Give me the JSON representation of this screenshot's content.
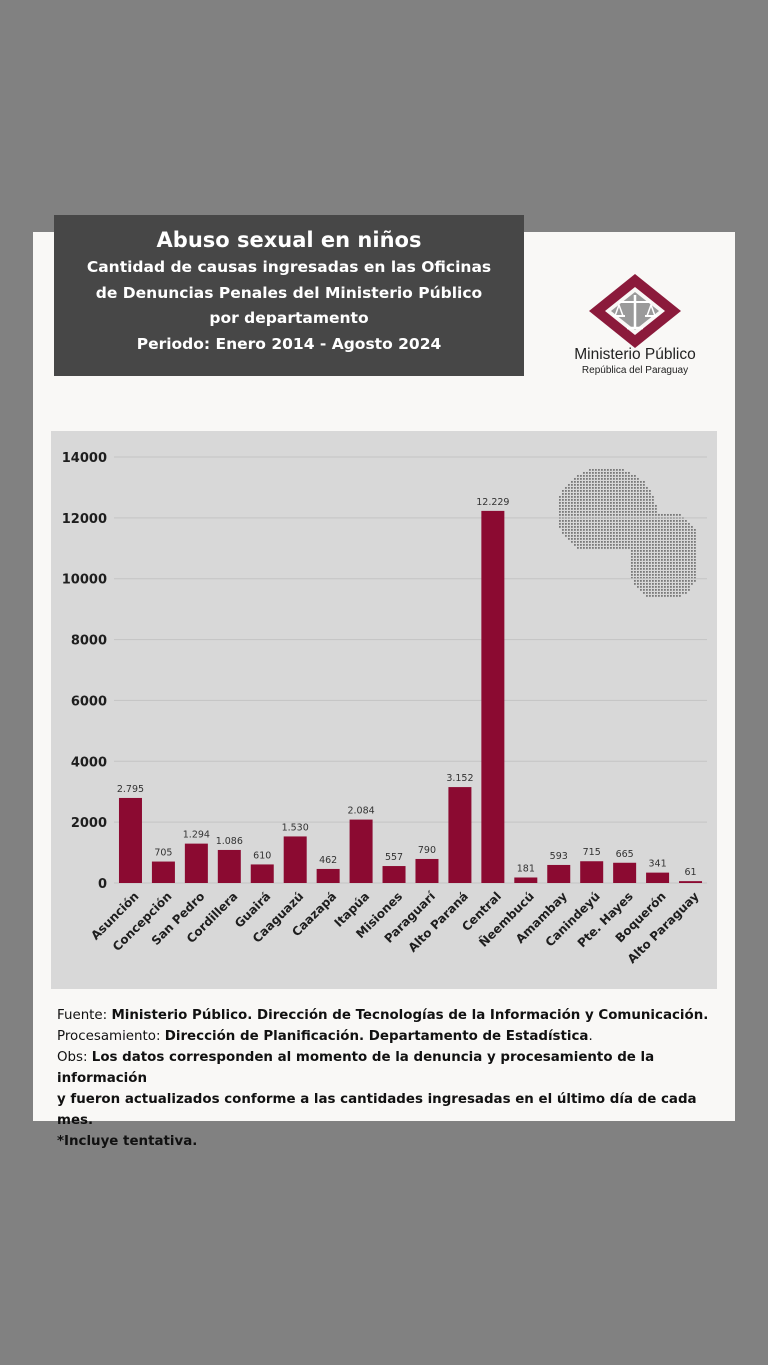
{
  "header": {
    "title": "Abuso sexual en niños",
    "subtitle_line1": "Cantidad de causas ingresadas en las Oficinas",
    "subtitle_line2": "de Denuncias Penales del Ministerio Público",
    "subtitle_line3": "por departamento",
    "period": "Periodo: Enero 2014 - Agosto 2024"
  },
  "logo": {
    "name": "Ministerio Público",
    "subtitle": "República del Paraguay"
  },
  "colors": {
    "bar": "#8b0a31",
    "title_bg": "#474747",
    "chart_bg": "#d8d8d8"
  },
  "chart_data": {
    "type": "bar",
    "title": "",
    "xlabel": "",
    "ylabel": "",
    "ylim": [
      0,
      14000
    ],
    "yticks": [
      "0",
      "2000",
      "4000",
      "6000",
      "8000",
      "10000",
      "12000",
      "14000"
    ],
    "grid": true,
    "categories": [
      "Asunción",
      "Concepción",
      "San Pedro",
      "Cordillera",
      "Guairá",
      "Caaguazú",
      "Caazapá",
      "Itapúa",
      "Misiones",
      "Paraguarí",
      "Alto Paraná",
      "Central",
      "Ñeembucú",
      "Amambay",
      "Canindeyú",
      "Pte. Hayes",
      "Boquerón",
      "Alto Paraguay"
    ],
    "values": [
      2795,
      705,
      1294,
      1086,
      610,
      1530,
      462,
      2084,
      557,
      790,
      3152,
      12229,
      181,
      593,
      715,
      665,
      341,
      61
    ],
    "labels": [
      "2.795",
      "705",
      "1.294",
      "1.086",
      "610",
      "1.530",
      "462",
      "2.084",
      "557",
      "790",
      "3.152",
      "12.229",
      "181",
      "593",
      "715",
      "665",
      "341",
      "61"
    ]
  },
  "footer": {
    "source_label": "Fuente: ",
    "source_text": "Ministerio Público. Dirección de Tecnologías de la Información y Comunicación.",
    "processing_label": "Procesamiento: ",
    "processing_text": "Dirección de Planificación. Departamento de Estadística",
    "processing_end": ".",
    "obs_label": "Obs: ",
    "obs_text_line1": "Los datos corresponden al momento de la denuncia y procesamiento de la información",
    "obs_text_line2": "y fueron actualizados conforme a las cantidades ingresadas en el último día de cada mes.",
    "note": "*Incluye tentativa."
  }
}
